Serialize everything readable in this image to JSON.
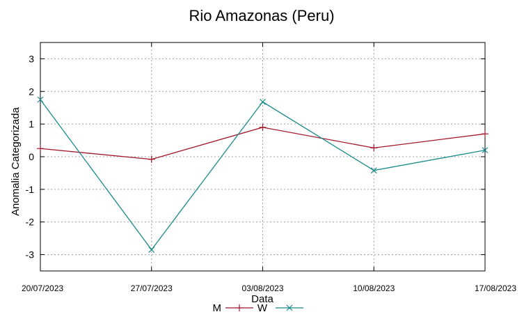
{
  "chart_data": {
    "type": "line",
    "title": "Rio Amazonas (Peru)",
    "xlabel": "Data",
    "ylabel": "Anomalia Categorizada",
    "categories": [
      "20/07/2023",
      "27/07/2023",
      "03/08/2023",
      "10/08/2023",
      "17/08/2023"
    ],
    "ylim": [
      -3.5,
      3.5
    ],
    "yticks": [
      "3",
      "2",
      "1",
      "0",
      "-1",
      "-2",
      "-3"
    ],
    "ytick_values": [
      3,
      2,
      1,
      0,
      -1,
      -2,
      -3
    ],
    "grid": true,
    "legend_position": "bottom-center",
    "series": [
      {
        "name": "M",
        "marker": "+",
        "color": "#a3172a",
        "values": [
          0.25,
          -0.08,
          0.9,
          0.27,
          0.7
        ]
      },
      {
        "name": "W",
        "marker": "x",
        "color": "#1a8a8a",
        "values": [
          1.75,
          -2.85,
          1.68,
          -0.42,
          0.2
        ]
      }
    ]
  }
}
